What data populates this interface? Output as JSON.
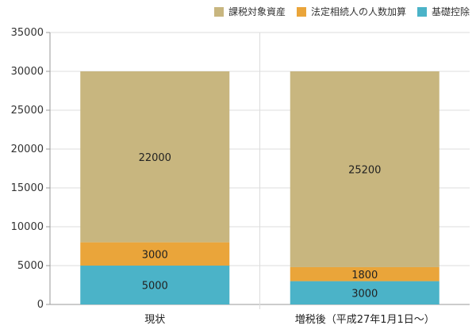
{
  "chart_data": {
    "type": "bar",
    "stacked": true,
    "categories": [
      "現状",
      "増税後（平成27年1月1日〜）"
    ],
    "series": [
      {
        "name": "基礎控除",
        "values": [
          5000,
          3000
        ],
        "color": "#4bb3c8"
      },
      {
        "name": "法定相続人の人数加算",
        "values": [
          3000,
          1800
        ],
        "color": "#eaa53a"
      },
      {
        "name": "課税対象資産",
        "values": [
          22000,
          25200
        ],
        "color": "#c8b67f"
      }
    ],
    "legend_order": [
      "課税対象資産",
      "法定相続人の人数加算",
      "基礎控除"
    ],
    "legend_placement": "top-right",
    "ylim": [
      0,
      35000
    ],
    "yticks": [
      "0",
      "5000",
      "10000",
      "15000",
      "20000",
      "25000",
      "30000",
      "35000"
    ],
    "grid": true,
    "title": "",
    "xlabel": "",
    "ylabel": ""
  }
}
